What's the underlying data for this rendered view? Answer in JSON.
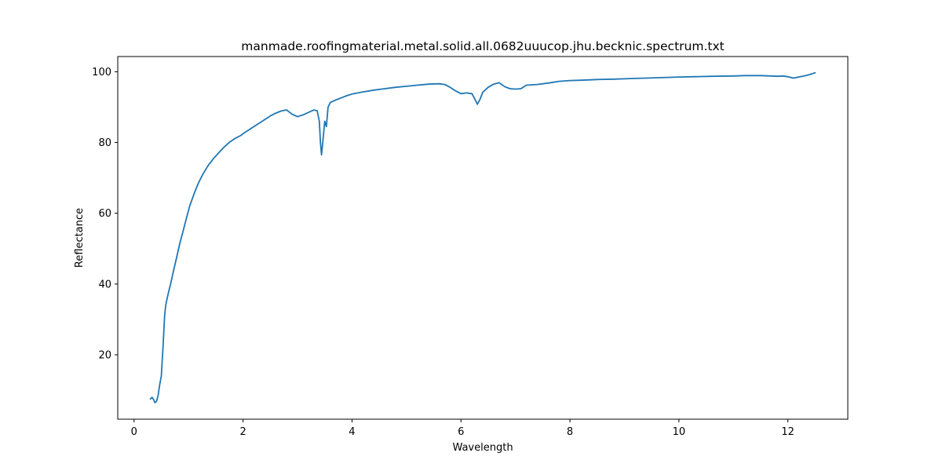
{
  "chart_data": {
    "type": "line",
    "title": "manmade.roofingmaterial.metal.solid.all.0682uuucop.jhu.becknic.spectrum.txt",
    "xlabel": "Wavelength",
    "ylabel": "Reflectance",
    "xlim": [
      -0.3,
      13.1
    ],
    "ylim": [
      1.8,
      104.3
    ],
    "xticks": [
      0,
      2,
      4,
      6,
      8,
      10,
      12
    ],
    "yticks": [
      20,
      40,
      60,
      80,
      100
    ],
    "xtick_labels": [
      "0",
      "2",
      "4",
      "6",
      "8",
      "10",
      "12"
    ],
    "ytick_labels": [
      "20",
      "40",
      "60",
      "80",
      "100"
    ],
    "grid": false,
    "line_color": "#1f77b4",
    "series": [
      {
        "x": [
          0.3,
          0.33,
          0.36,
          0.38,
          0.41,
          0.44,
          0.47,
          0.5,
          0.53,
          0.56,
          0.58,
          0.6,
          0.63,
          0.67,
          0.72,
          0.78,
          0.84,
          0.9,
          0.96,
          1.02,
          1.1,
          1.18,
          1.26,
          1.36,
          1.46,
          1.56,
          1.66,
          1.76,
          1.86,
          1.96,
          2.0,
          2.1,
          2.2,
          2.3,
          2.4,
          2.5,
          2.6,
          2.7,
          2.76,
          2.8,
          2.85,
          2.9,
          3.0,
          3.1,
          3.2,
          3.3,
          3.36,
          3.4,
          3.42,
          3.44,
          3.47,
          3.5,
          3.53,
          3.56,
          3.6,
          3.7,
          3.8,
          3.9,
          4.0,
          4.2,
          4.4,
          4.6,
          4.8,
          5.0,
          5.2,
          5.4,
          5.6,
          5.7,
          5.8,
          5.9,
          6.0,
          6.1,
          6.2,
          6.25,
          6.3,
          6.35,
          6.4,
          6.5,
          6.6,
          6.7,
          6.8,
          6.9,
          7.0,
          7.1,
          7.2,
          7.4,
          7.6,
          7.8,
          8.0,
          8.2,
          8.5,
          8.8,
          9.0,
          9.2,
          9.4,
          9.6,
          9.8,
          10.0,
          10.3,
          10.6,
          11.0,
          11.2,
          11.5,
          11.7,
          11.8,
          11.9,
          12.0,
          12.1,
          12.2,
          12.3,
          12.4,
          12.5
        ],
        "y": [
          7.5,
          8.0,
          7.3,
          6.5,
          6.8,
          8.5,
          11.5,
          14.0,
          22.0,
          31.0,
          34.0,
          35.5,
          37.5,
          40.0,
          43.5,
          47.5,
          51.5,
          55.0,
          58.5,
          62.0,
          65.5,
          68.5,
          71.0,
          73.5,
          75.5,
          77.2,
          78.8,
          80.2,
          81.2,
          82.0,
          82.5,
          83.5,
          84.5,
          85.5,
          86.5,
          87.5,
          88.3,
          88.9,
          89.1,
          89.2,
          88.6,
          88.0,
          87.3,
          87.8,
          88.5,
          89.2,
          89.0,
          86.0,
          80.0,
          76.5,
          81.0,
          86.0,
          84.5,
          90.0,
          91.3,
          92.0,
          92.6,
          93.2,
          93.7,
          94.3,
          94.8,
          95.2,
          95.6,
          95.9,
          96.2,
          96.5,
          96.6,
          96.4,
          95.6,
          94.6,
          93.8,
          94.0,
          93.8,
          92.4,
          90.8,
          92.2,
          94.2,
          95.6,
          96.5,
          96.9,
          95.8,
          95.2,
          95.1,
          95.2,
          96.2,
          96.4,
          96.8,
          97.3,
          97.5,
          97.6,
          97.8,
          97.9,
          98.0,
          98.1,
          98.2,
          98.3,
          98.4,
          98.5,
          98.6,
          98.7,
          98.8,
          98.9,
          98.9,
          98.8,
          98.7,
          98.8,
          98.6,
          98.2,
          98.5,
          98.8,
          99.2,
          99.7
        ]
      }
    ]
  }
}
